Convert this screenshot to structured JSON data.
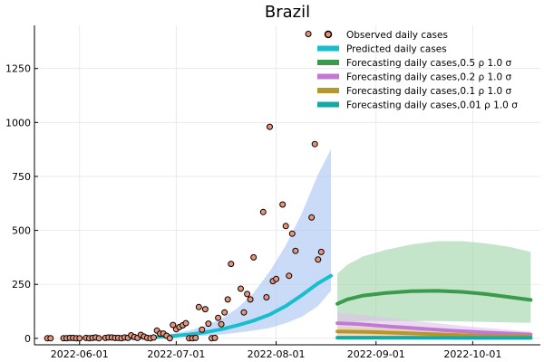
{
  "chart_data": {
    "type": "scatter",
    "title": "Brazil",
    "xlabel": "",
    "ylabel": "",
    "x_axis_type": "date",
    "xlim": [
      "2022-05-18",
      "2022-10-22"
    ],
    "ylim": [
      -30,
      1450
    ],
    "grid": true,
    "legend_position": "top-right",
    "x_ticks": [
      {
        "date": "2022-06-01",
        "label": "2022-06-01"
      },
      {
        "date": "2022-07-01",
        "label": "2022-07-01"
      },
      {
        "date": "2022-08-01",
        "label": "2022-08-01"
      },
      {
        "date": "2022-09-01",
        "label": "2022-09-01"
      },
      {
        "date": "2022-10-01",
        "label": "2022-10-01"
      }
    ],
    "y_ticks": [
      {
        "value": 0,
        "label": "0"
      },
      {
        "value": 250,
        "label": "250"
      },
      {
        "value": 500,
        "label": "500"
      },
      {
        "value": 750,
        "label": "750"
      },
      {
        "value": 1000,
        "label": "1000"
      },
      {
        "value": 1250,
        "label": "1250"
      }
    ],
    "observed": {
      "name": "Observed daily cases",
      "color": "#e8947a",
      "points": [
        [
          "2022-05-22",
          0
        ],
        [
          "2022-05-23",
          0
        ],
        [
          "2022-05-27",
          0
        ],
        [
          "2022-05-28",
          0
        ],
        [
          "2022-05-29",
          2
        ],
        [
          "2022-05-30",
          2
        ],
        [
          "2022-05-31",
          0
        ],
        [
          "2022-06-01",
          0
        ],
        [
          "2022-06-03",
          2
        ],
        [
          "2022-06-04",
          0
        ],
        [
          "2022-06-05",
          2
        ],
        [
          "2022-06-06",
          4
        ],
        [
          "2022-06-07",
          0
        ],
        [
          "2022-06-09",
          2
        ],
        [
          "2022-06-10",
          4
        ],
        [
          "2022-06-11",
          4
        ],
        [
          "2022-06-12",
          2
        ],
        [
          "2022-06-13",
          2
        ],
        [
          "2022-06-14",
          0
        ],
        [
          "2022-06-15",
          4
        ],
        [
          "2022-06-16",
          2
        ],
        [
          "2022-06-17",
          14
        ],
        [
          "2022-06-18",
          6
        ],
        [
          "2022-06-19",
          2
        ],
        [
          "2022-06-20",
          16
        ],
        [
          "2022-06-21",
          8
        ],
        [
          "2022-06-22",
          2
        ],
        [
          "2022-06-23",
          0
        ],
        [
          "2022-06-24",
          4
        ],
        [
          "2022-06-25",
          36
        ],
        [
          "2022-06-26",
          22
        ],
        [
          "2022-06-27",
          22
        ],
        [
          "2022-06-28",
          12
        ],
        [
          "2022-06-29",
          0
        ],
        [
          "2022-06-30",
          62
        ],
        [
          "2022-07-01",
          42
        ],
        [
          "2022-07-02",
          52
        ],
        [
          "2022-07-03",
          60
        ],
        [
          "2022-07-04",
          70
        ],
        [
          "2022-07-05",
          0
        ],
        [
          "2022-07-06",
          0
        ],
        [
          "2022-07-07",
          2
        ],
        [
          "2022-07-08",
          145
        ],
        [
          "2022-07-09",
          40
        ],
        [
          "2022-07-10",
          135
        ],
        [
          "2022-07-11",
          68
        ],
        [
          "2022-07-12",
          0
        ],
        [
          "2022-07-13",
          2
        ],
        [
          "2022-07-14",
          95
        ],
        [
          "2022-07-15",
          65
        ],
        [
          "2022-07-16",
          120
        ],
        [
          "2022-07-17",
          180
        ],
        [
          "2022-07-18",
          345
        ],
        [
          "2022-07-21",
          230
        ],
        [
          "2022-07-22",
          120
        ],
        [
          "2022-07-23",
          205
        ],
        [
          "2022-07-24",
          180
        ],
        [
          "2022-07-25",
          375
        ],
        [
          "2022-07-28",
          585
        ],
        [
          "2022-07-29",
          190
        ],
        [
          "2022-07-30",
          980
        ],
        [
          "2022-07-31",
          265
        ],
        [
          "2022-08-01",
          275
        ],
        [
          "2022-08-03",
          620
        ],
        [
          "2022-08-04",
          520
        ],
        [
          "2022-08-05",
          290
        ],
        [
          "2022-08-06",
          485
        ],
        [
          "2022-08-07",
          405
        ],
        [
          "2022-08-11",
          1410
        ],
        [
          "2022-08-12",
          560
        ],
        [
          "2022-08-13",
          900
        ],
        [
          "2022-08-14",
          365
        ],
        [
          "2022-08-15",
          400
        ]
      ]
    },
    "predicted": {
      "name": "Predicted daily cases",
      "color": "#17becf",
      "band_color": "#aec7f5",
      "points": [
        [
          "2022-06-10",
          0,
          0,
          0
        ],
        [
          "2022-06-15",
          1,
          0,
          2
        ],
        [
          "2022-06-20",
          3,
          1,
          6
        ],
        [
          "2022-06-25",
          6,
          2,
          12
        ],
        [
          "2022-06-30",
          11,
          4,
          22
        ],
        [
          "2022-07-05",
          18,
          8,
          36
        ],
        [
          "2022-07-10",
          28,
          12,
          58
        ],
        [
          "2022-07-15",
          42,
          18,
          90
        ],
        [
          "2022-07-20",
          60,
          26,
          140
        ],
        [
          "2022-07-25",
          82,
          36,
          210
        ],
        [
          "2022-07-30",
          110,
          48,
          310
        ],
        [
          "2022-08-04",
          150,
          70,
          430
        ],
        [
          "2022-08-09",
          200,
          100,
          580
        ],
        [
          "2022-08-14",
          255,
          150,
          760
        ],
        [
          "2022-08-18",
          290,
          220,
          875
        ]
      ]
    },
    "forecasts": [
      {
        "name": "Forecasting daily cases,0.5 ρ 1.0 σ",
        "color": "#3a9b4c",
        "band_color": "#9fd4a6",
        "points": [
          [
            "2022-08-20",
            160,
            70,
            300
          ],
          [
            "2022-08-23",
            180,
            75,
            340
          ],
          [
            "2022-08-28",
            198,
            80,
            380
          ],
          [
            "2022-09-04",
            210,
            80,
            410
          ],
          [
            "2022-09-12",
            218,
            80,
            435
          ],
          [
            "2022-09-20",
            220,
            80,
            450
          ],
          [
            "2022-09-28",
            215,
            78,
            450
          ],
          [
            "2022-10-05",
            205,
            76,
            440
          ],
          [
            "2022-10-12",
            192,
            74,
            425
          ],
          [
            "2022-10-19",
            178,
            72,
            400
          ]
        ]
      },
      {
        "name": "Forecasting daily cases,0.2 ρ 1.0 σ",
        "color": "#c07ad4",
        "band_color": "#e0c0ea",
        "points": [
          [
            "2022-08-20",
            70,
            20,
            120
          ],
          [
            "2022-08-27",
            65,
            18,
            110
          ],
          [
            "2022-09-05",
            55,
            14,
            95
          ],
          [
            "2022-09-15",
            45,
            10,
            78
          ],
          [
            "2022-09-25",
            35,
            6,
            62
          ],
          [
            "2022-10-05",
            27,
            4,
            48
          ],
          [
            "2022-10-19",
            18,
            2,
            32
          ]
        ]
      },
      {
        "name": "Forecasting daily cases,0.1 ρ 1.0 σ",
        "color": "#b8962e",
        "band_color": "#e2d19c",
        "points": [
          [
            "2022-08-20",
            32,
            10,
            55
          ],
          [
            "2022-08-30",
            30,
            8,
            50
          ],
          [
            "2022-09-10",
            24,
            6,
            42
          ],
          [
            "2022-09-25",
            16,
            3,
            30
          ],
          [
            "2022-10-10",
            10,
            1,
            20
          ],
          [
            "2022-10-19",
            7,
            0,
            15
          ]
        ]
      },
      {
        "name": "Forecasting daily cases,0.01 ρ 1.0 σ",
        "color": "#14a9a9",
        "band_color": "#8fd8d8",
        "points": [
          [
            "2022-08-20",
            3,
            0,
            8
          ],
          [
            "2022-09-10",
            3,
            0,
            7
          ],
          [
            "2022-10-01",
            2,
            0,
            6
          ],
          [
            "2022-10-19",
            2,
            0,
            5
          ]
        ]
      }
    ]
  }
}
